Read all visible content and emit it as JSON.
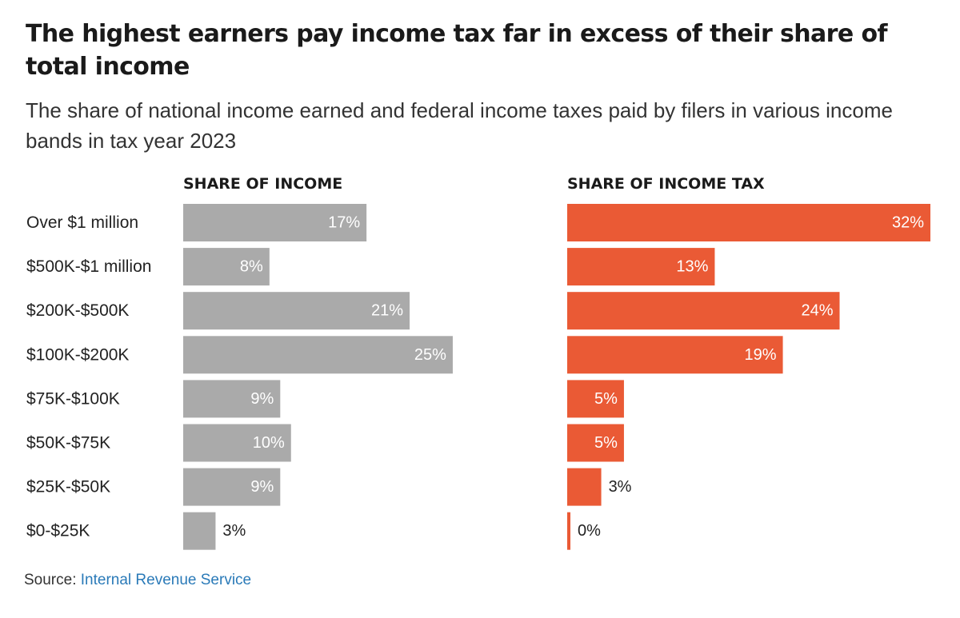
{
  "title": "The highest earners pay income tax far in excess of their share of total income",
  "subtitle": "The share of national income earned and federal income taxes paid by filers in various income bands in tax year 2023",
  "source": {
    "prefix": "Source:",
    "name": "Internal Revenue Service"
  },
  "colors": {
    "income_bar": "#aaaaaa",
    "tax_bar": "#ea5a35",
    "inside_label": "#ffffff",
    "outside_label": "#222222",
    "link": "#2a7ab8"
  },
  "chart_data": [
    {
      "type": "bar",
      "orientation": "horizontal",
      "title": "SHARE OF INCOME",
      "categories": [
        "Over $1 million",
        "$500K-$1 million",
        "$200K-$500K",
        "$100K-$200K",
        "$75K-$100K",
        "$50K-$75K",
        "$25K-$50K",
        "$0-$25K"
      ],
      "values": [
        17,
        8,
        21,
        25,
        9,
        10,
        9,
        3
      ],
      "value_labels": [
        "17%",
        "8%",
        "21%",
        "25%",
        "9%",
        "10%",
        "9%",
        "3%"
      ],
      "unit": "%",
      "xlim": [
        0,
        32
      ],
      "grid": false
    },
    {
      "type": "bar",
      "orientation": "horizontal",
      "title": "SHARE OF INCOME TAX",
      "categories": [
        "Over $1 million",
        "$500K-$1 million",
        "$200K-$500K",
        "$100K-$200K",
        "$75K-$100K",
        "$50K-$75K",
        "$25K-$50K",
        "$0-$25K"
      ],
      "values": [
        32,
        13,
        24,
        19,
        5,
        5,
        3,
        0
      ],
      "value_labels": [
        "32%",
        "13%",
        "24%",
        "19%",
        "5%",
        "5%",
        "3%",
        "0%"
      ],
      "unit": "%",
      "xlim": [
        0,
        32
      ],
      "grid": false
    }
  ]
}
